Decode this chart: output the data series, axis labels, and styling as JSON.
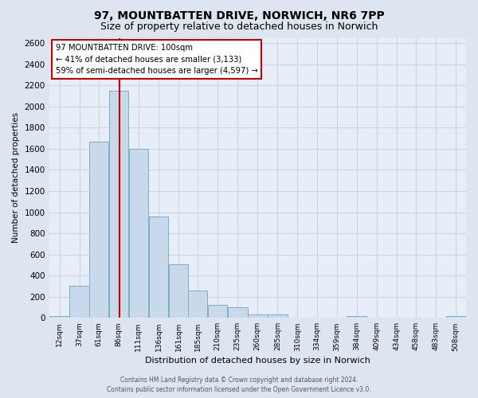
{
  "title": "97, MOUNTBATTEN DRIVE, NORWICH, NR6 7PP",
  "subtitle": "Size of property relative to detached houses in Norwich",
  "xlabel": "Distribution of detached houses by size in Norwich",
  "ylabel": "Number of detached properties",
  "bin_labels": [
    "12sqm",
    "37sqm",
    "61sqm",
    "86sqm",
    "111sqm",
    "136sqm",
    "161sqm",
    "185sqm",
    "210sqm",
    "235sqm",
    "260sqm",
    "285sqm",
    "310sqm",
    "334sqm",
    "359sqm",
    "384sqm",
    "409sqm",
    "434sqm",
    "458sqm",
    "483sqm",
    "508sqm"
  ],
  "bin_edges": [
    12,
    37,
    61,
    86,
    111,
    136,
    161,
    185,
    210,
    235,
    260,
    285,
    310,
    334,
    359,
    384,
    409,
    434,
    458,
    483,
    508
  ],
  "bar_heights": [
    20,
    300,
    1670,
    2150,
    1600,
    960,
    505,
    255,
    120,
    100,
    35,
    35,
    5,
    5,
    5,
    20,
    5,
    5,
    5,
    5,
    20
  ],
  "bar_color": "#c9d9ec",
  "bar_edge_color": "#7aaec8",
  "ylim": [
    0,
    2650
  ],
  "yticks": [
    0,
    200,
    400,
    600,
    800,
    1000,
    1200,
    1400,
    1600,
    1800,
    2000,
    2200,
    2400,
    2600
  ],
  "vline_x": 100,
  "vline_color": "#cc0000",
  "annotation_title": "97 MOUNTBATTEN DRIVE: 100sqm",
  "annotation_line1": "← 41% of detached houses are smaller (3,133)",
  "annotation_line2": "59% of semi-detached houses are larger (4,597) →",
  "annotation_box_color": "#ffffff",
  "annotation_box_edge": "#cc0000",
  "footer_line1": "Contains HM Land Registry data © Crown copyright and database right 2024.",
  "footer_line2": "Contains public sector information licensed under the Open Government Licence v3.0.",
  "grid_color": "#c8d4e8",
  "bg_color": "#dde6f0",
  "plot_bg_color": "#e8eef8",
  "title_fontsize": 10,
  "subtitle_fontsize": 9
}
